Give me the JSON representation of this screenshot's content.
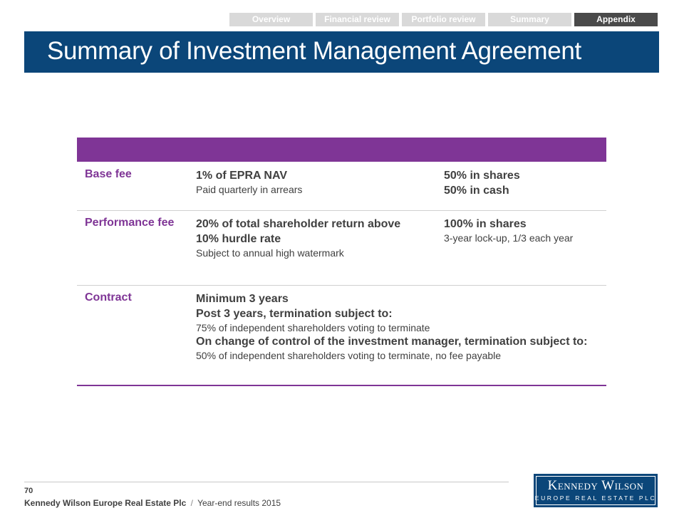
{
  "nav": {
    "tabs": [
      "Overview",
      "Financial review",
      "Portfolio review",
      "Summary",
      "Appendix"
    ],
    "active": 4
  },
  "header": {
    "title": "Summary of Investment Management Agreement"
  },
  "table": {
    "rows": [
      {
        "label": "Base fee",
        "terms": [
          {
            "text": "1% of EPRA NAV",
            "bold": true
          },
          {
            "text": "Paid quarterly in arrears",
            "bold": false
          }
        ],
        "settlement": [
          {
            "text": "50% in shares",
            "bold": true
          },
          {
            "text": "50% in cash",
            "bold": true
          }
        ]
      },
      {
        "label": "Performance fee",
        "terms": [
          {
            "text": "20% of total shareholder return above",
            "bold": true
          },
          {
            "text": "10% hurdle rate",
            "bold": true
          },
          {
            "text": "Subject to annual high watermark",
            "bold": false
          }
        ],
        "settlement": [
          {
            "text": "100% in shares",
            "bold": true
          },
          {
            "text": "3-year lock-up, 1/3 each year",
            "bold": false
          }
        ]
      },
      {
        "label": "Contract",
        "terms": [
          {
            "text": "Minimum 3 years",
            "bold": true
          },
          {
            "text": "Post 3 years, termination subject to:",
            "bold": true
          },
          {
            "text": "75% of independent shareholders voting to terminate",
            "bold": false
          },
          {
            "text": "On change of control of the investment manager, termination subject to:",
            "bold": true
          },
          {
            "text": "50% of independent shareholders voting to terminate, no fee payable",
            "bold": false
          }
        ],
        "settlement": []
      }
    ]
  },
  "footer": {
    "page": "70",
    "company": "Kennedy Wilson Europe Real Estate Plc",
    "separator": "/",
    "event": "Year-end results 2015",
    "logo": {
      "name": "Kennedy Wilson",
      "tagline": "EUROPE REAL ESTATE PLC"
    }
  }
}
